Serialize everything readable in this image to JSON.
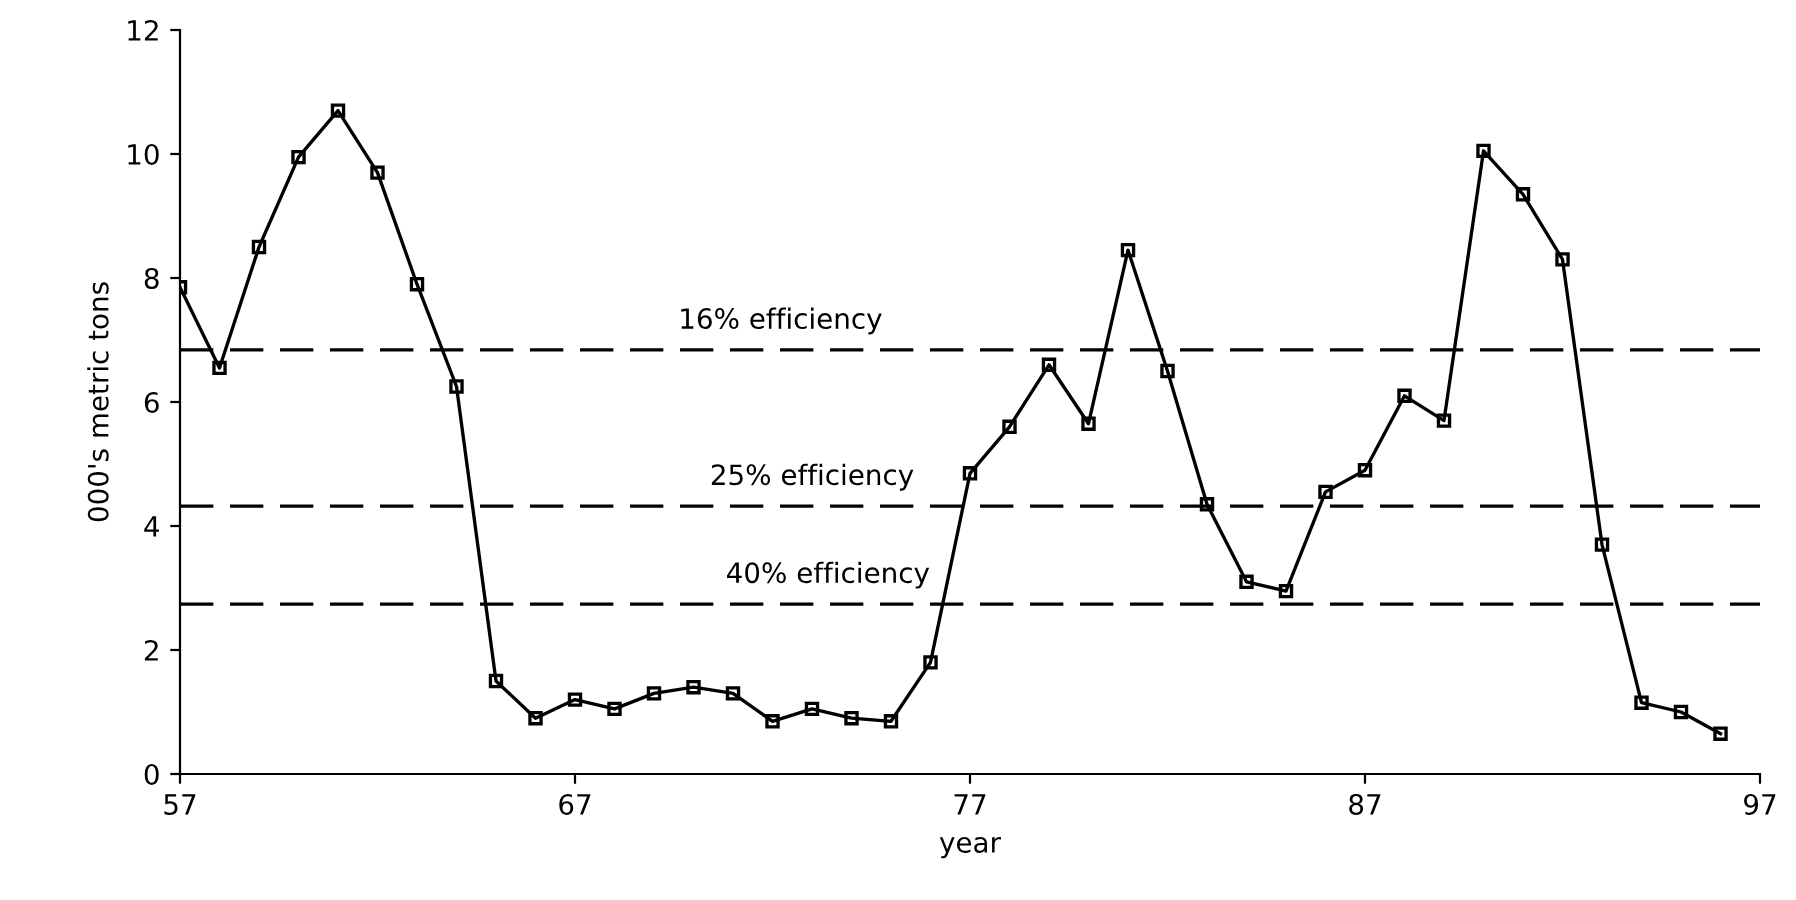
{
  "chart_data": {
    "type": "line",
    "xlabel": "year",
    "ylabel": "000's metric tons",
    "x": [
      57,
      58,
      59,
      60,
      61,
      62,
      63,
      64,
      65,
      66,
      67,
      68,
      69,
      70,
      71,
      72,
      73,
      74,
      75,
      76,
      77,
      78,
      79,
      80,
      81,
      82,
      83,
      84,
      85,
      86,
      87,
      88,
      89,
      90,
      91,
      92,
      93,
      94,
      95,
      96
    ],
    "series": [
      {
        "color": "#000000",
        "values": [
          7.85,
          6.55,
          8.5,
          9.95,
          10.7,
          9.7,
          7.9,
          6.25,
          1.5,
          0.9,
          1.2,
          1.05,
          1.3,
          1.4,
          1.3,
          0.85,
          1.05,
          0.9,
          0.85,
          1.8,
          4.85,
          5.6,
          6.6,
          5.65,
          8.45,
          6.5,
          4.35,
          3.1,
          2.95,
          4.55,
          4.9,
          6.1,
          5.7,
          10.05,
          9.35,
          8.3,
          3.7,
          1.15,
          1.0,
          0.65
        ]
      }
    ],
    "xlim": [
      57,
      97
    ],
    "xticks": [
      57,
      67,
      77,
      87,
      97
    ],
    "ylim": [
      0,
      12
    ],
    "yticks": [
      0,
      2,
      4,
      6,
      8,
      10,
      12
    ],
    "ref_lines": [
      {
        "axis": "y",
        "value": 6.84,
        "label": "16% efficiency",
        "line_style": "dashed",
        "color": "#000000"
      },
      {
        "axis": "y",
        "value": 4.32,
        "label": "25% efficiency",
        "line_style": "dashed",
        "color": "#000000"
      },
      {
        "axis": "y",
        "value": 2.74,
        "label": "40% efficiency",
        "line_style": "dashed",
        "color": "#000000"
      }
    ],
    "marker": "square",
    "line_style": "solid",
    "grid": false,
    "legend": false
  }
}
